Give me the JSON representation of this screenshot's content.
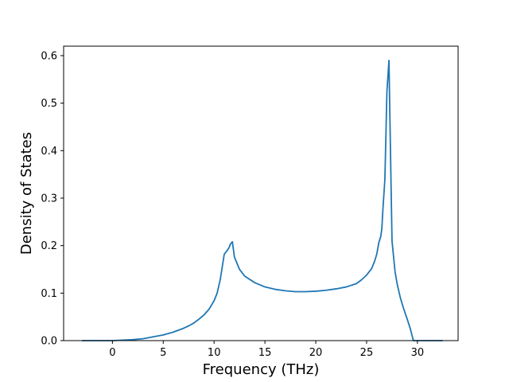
{
  "chart_data": {
    "type": "line",
    "title": "",
    "xlabel": "Frequency (THz)",
    "ylabel": "Density of States",
    "xlim": [
      -4.8,
      34.0
    ],
    "ylim": [
      0.0,
      0.62
    ],
    "grid": false,
    "legend": "none",
    "x_ticks": [
      0,
      5,
      10,
      15,
      20,
      25,
      30
    ],
    "y_ticks": [
      0.0,
      0.1,
      0.2,
      0.3,
      0.4,
      0.5,
      0.6
    ],
    "x_tick_labels": [
      "0",
      "5",
      "10",
      "15",
      "20",
      "25",
      "30"
    ],
    "y_tick_labels": [
      "0.0",
      "0.1",
      "0.2",
      "0.3",
      "0.4",
      "0.5",
      "0.6"
    ],
    "series": [
      {
        "color": "#1f77b4",
        "x": [
          -3.0,
          -1.0,
          0.0,
          1.0,
          2.0,
          3.0,
          4.0,
          5.0,
          6.0,
          7.0,
          7.5,
          8.0,
          8.5,
          9.0,
          9.5,
          10.0,
          10.3,
          10.6,
          11.0,
          11.3,
          11.5,
          11.6,
          11.8,
          12.0,
          12.5,
          13.0,
          14.0,
          15.0,
          16.0,
          17.0,
          18.0,
          19.0,
          20.0,
          21.0,
          22.0,
          23.0,
          24.0,
          24.5,
          25.0,
          25.5,
          25.8,
          26.0,
          26.2,
          26.4,
          26.5,
          26.6,
          26.8,
          27.0,
          27.2,
          27.3,
          27.5,
          27.8,
          28.0,
          28.3,
          28.6,
          29.0,
          29.3,
          29.6,
          30.0,
          31.0,
          32.5
        ],
        "y": [
          0.0,
          0.0,
          0.0,
          0.001,
          0.002,
          0.004,
          0.008,
          0.012,
          0.018,
          0.026,
          0.031,
          0.037,
          0.045,
          0.054,
          0.066,
          0.084,
          0.1,
          0.128,
          0.182,
          0.19,
          0.197,
          0.203,
          0.208,
          0.176,
          0.15,
          0.136,
          0.122,
          0.113,
          0.108,
          0.105,
          0.103,
          0.103,
          0.104,
          0.106,
          0.109,
          0.113,
          0.12,
          0.128,
          0.138,
          0.152,
          0.168,
          0.182,
          0.206,
          0.22,
          0.236,
          0.275,
          0.34,
          0.525,
          0.59,
          0.46,
          0.21,
          0.145,
          0.12,
          0.092,
          0.07,
          0.045,
          0.025,
          0.0,
          0.0,
          0.0,
          0.0
        ]
      }
    ]
  }
}
